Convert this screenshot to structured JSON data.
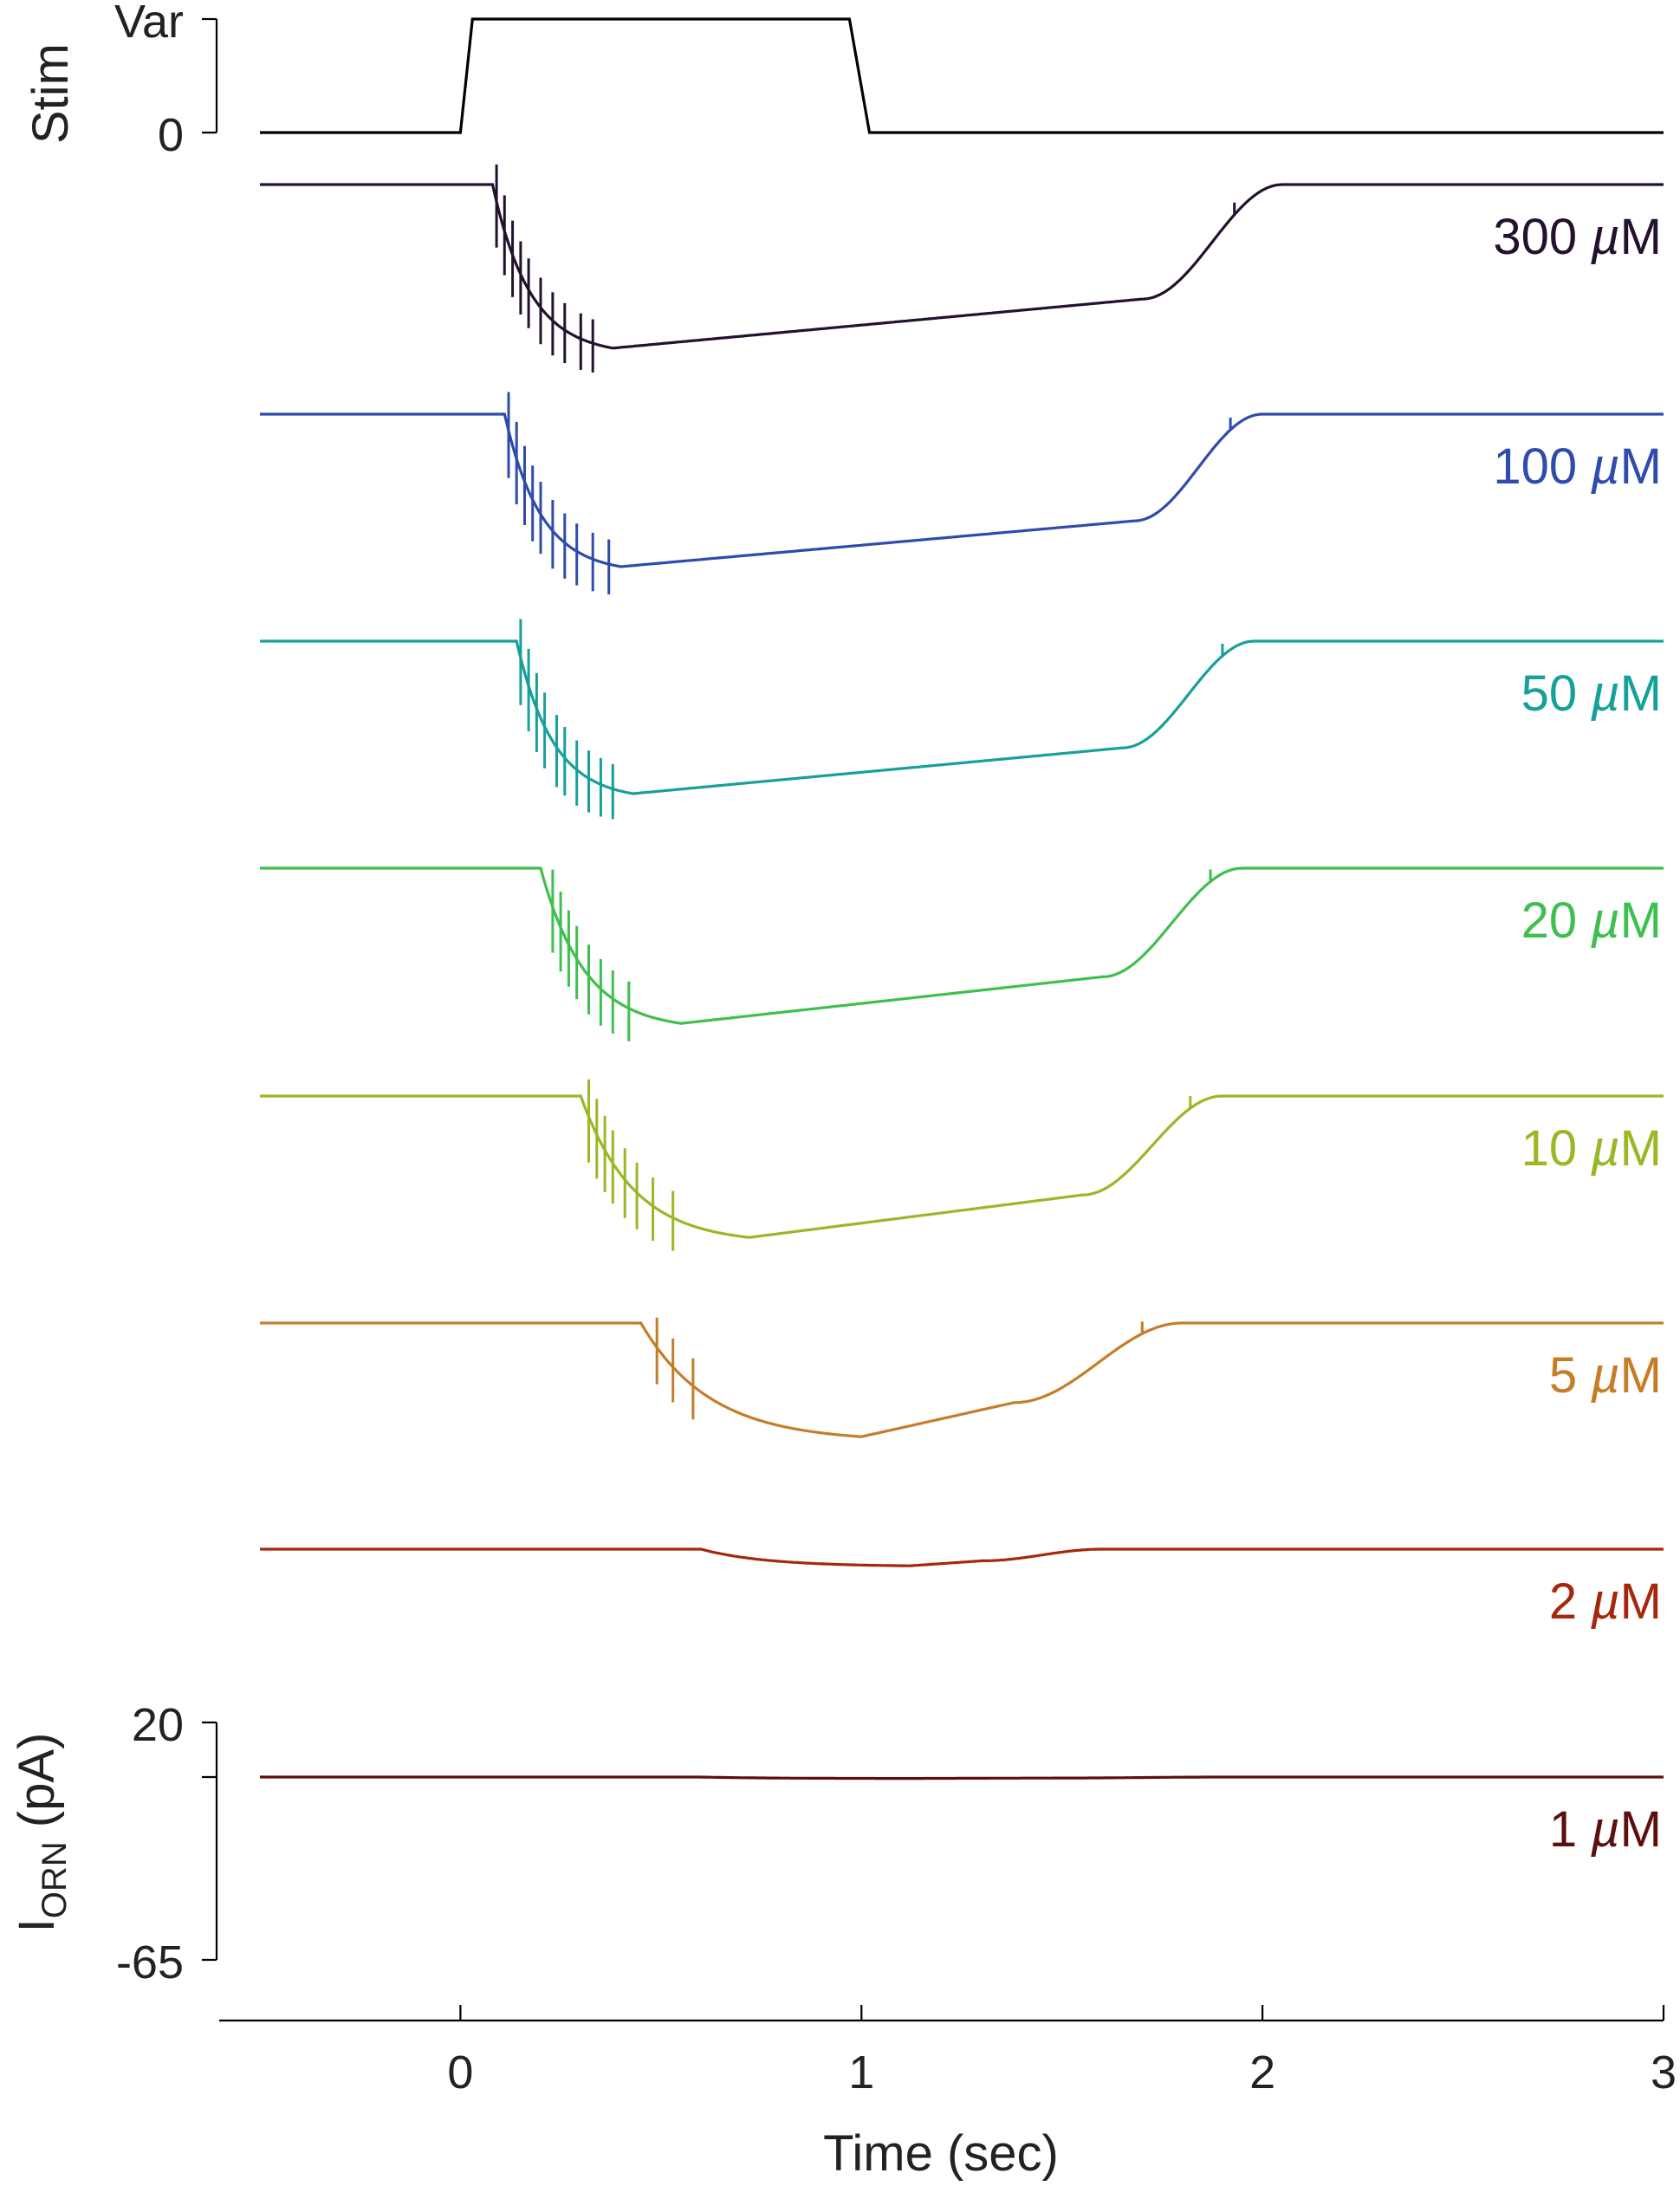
{
  "chart_data": {
    "type": "line",
    "xlabel": "Time (sec)",
    "xlim": [
      -0.5,
      3
    ],
    "xticks": [
      "0",
      "1",
      "2",
      "3"
    ],
    "xtick_values": [
      0,
      1,
      2,
      3
    ],
    "stim": {
      "ylabel": "Stim",
      "ytick_labels": [
        "Var",
        "0"
      ],
      "ytick_values": [
        1,
        0
      ],
      "onset_s": 0.0,
      "offset_s": 1.0,
      "x": [
        -0.5,
        0.0,
        0.03,
        0.97,
        1.02,
        3.0
      ],
      "y": [
        0,
        0,
        1,
        1,
        0,
        0
      ]
    },
    "current_axis": {
      "ylabel_main": "I",
      "ylabel_sub": "ORN",
      "ylabel_unit": " (pA)",
      "ytick_labels": [
        "20",
        "-65"
      ],
      "ytick_values": [
        20,
        -65
      ],
      "ylim": [
        -65,
        20
      ]
    },
    "series": [
      {
        "name": "300 µM",
        "conc": "300",
        "color": "#23112e",
        "latency": 0.08,
        "spikes": [
          0.09,
          0.11,
          0.13,
          0.15,
          0.17,
          0.2,
          0.23,
          0.26,
          0.3,
          0.33
        ],
        "spike_height": 0.6,
        "trough": 1.18,
        "trough_at": 0.38,
        "recovery_mid": 1.7,
        "recovery_end": 2.05,
        "bump": 1.93
      },
      {
        "name": "100 µM",
        "conc": "100",
        "color": "#2f4bab",
        "latency": 0.11,
        "spikes": [
          0.12,
          0.14,
          0.16,
          0.18,
          0.2,
          0.23,
          0.26,
          0.29,
          0.33,
          0.37
        ],
        "spike_height": 0.62,
        "trough": 1.1,
        "trough_at": 0.4,
        "recovery_mid": 1.68,
        "recovery_end": 2.0,
        "bump": 1.92
      },
      {
        "name": "50 µM",
        "conc": "50",
        "color": "#17a09a",
        "latency": 0.14,
        "spikes": [
          0.15,
          0.17,
          0.19,
          0.21,
          0.24,
          0.26,
          0.29,
          0.32,
          0.35,
          0.38
        ],
        "spike_height": 0.62,
        "trough": 1.1,
        "trough_at": 0.43,
        "recovery_mid": 1.65,
        "recovery_end": 1.98,
        "bump": 1.9
      },
      {
        "name": "20 µM",
        "conc": "20",
        "color": "#3fbf4e",
        "latency": 0.2,
        "spikes": [
          0.23,
          0.25,
          0.27,
          0.29,
          0.32,
          0.35,
          0.38,
          0.42
        ],
        "spike_height": 0.6,
        "trough": 1.12,
        "trough_at": 0.55,
        "recovery_mid": 1.6,
        "recovery_end": 1.95,
        "bump": 1.87
      },
      {
        "name": "10 µM",
        "conc": "10",
        "color": "#98b826",
        "latency": 0.3,
        "spikes": [
          0.32,
          0.34,
          0.36,
          0.38,
          0.41,
          0.44,
          0.48,
          0.53
        ],
        "spike_height": 0.6,
        "trough": 1.02,
        "trough_at": 0.72,
        "recovery_mid": 1.55,
        "recovery_end": 1.9,
        "bump": 1.82
      },
      {
        "name": "5 µM",
        "conc": "5",
        "color": "#c57d28",
        "latency": 0.45,
        "spikes": [
          0.49,
          0.53,
          0.58
        ],
        "spike_height": 0.48,
        "trough": 0.82,
        "trough_at": 1.0,
        "recovery_mid": 1.38,
        "recovery_end": 1.8,
        "bump": 1.7
      },
      {
        "name": "2 µM",
        "conc": "2",
        "color": "#a5280d",
        "latency": 0.6,
        "spikes": [],
        "spike_height": 0,
        "trough": 0.12,
        "trough_at": 1.12,
        "recovery_mid": 1.3,
        "recovery_end": 1.6,
        "bump": null
      },
      {
        "name": "1 µM",
        "conc": "1",
        "color": "#5d0f0f",
        "latency": 0.6,
        "spikes": [],
        "spike_height": 0,
        "trough": 0.01,
        "trough_at": 1.12,
        "recovery_mid": 1.5,
        "recovery_end": 1.9,
        "bump": null
      }
    ],
    "unit_label": "µM",
    "grid": false,
    "legend": "none"
  }
}
